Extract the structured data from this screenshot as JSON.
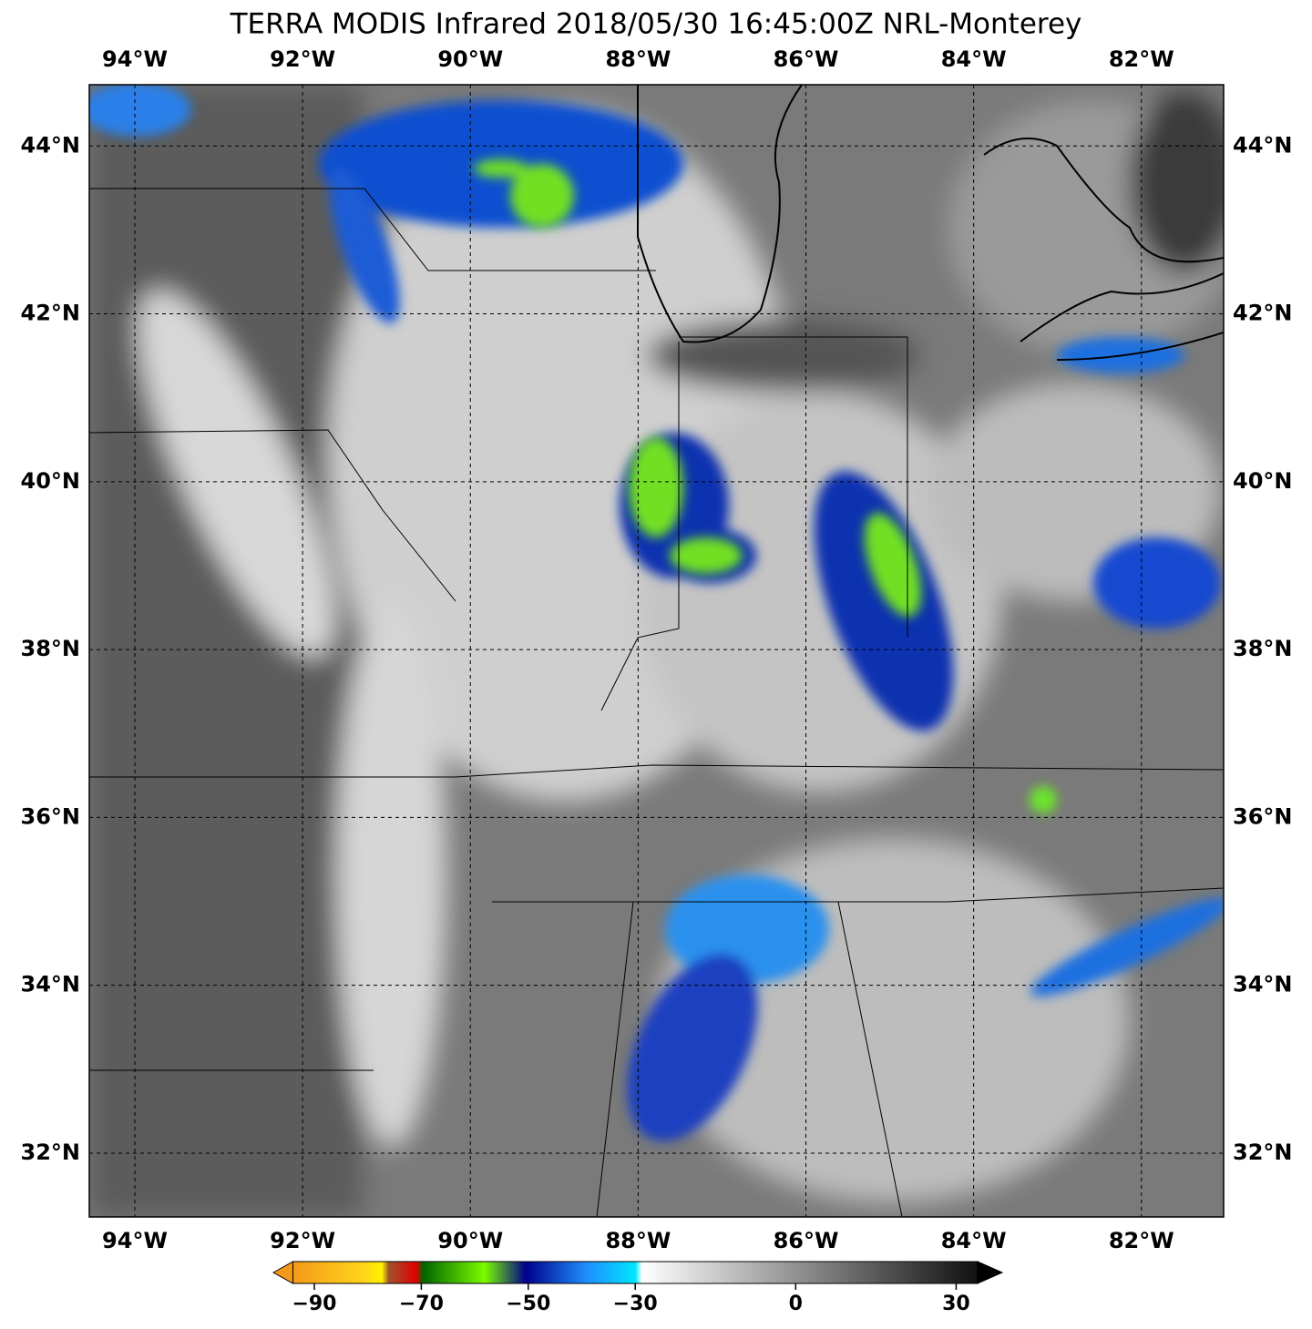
{
  "chart_data": {
    "type": "map",
    "title": "TERRA MODIS Infrared 2018/05/30 16:45:00Z NRL-Monterey",
    "xlim": [
      -94.543,
      -81.02
    ],
    "ylim": [
      31.24,
      44.73
    ],
    "xticks": [
      {
        "value": -94,
        "label": "94°W"
      },
      {
        "value": -92,
        "label": "92°W"
      },
      {
        "value": -90,
        "label": "90°W"
      },
      {
        "value": -88,
        "label": "88°W"
      },
      {
        "value": -86,
        "label": "86°W"
      },
      {
        "value": -84,
        "label": "84°W"
      },
      {
        "value": -82,
        "label": "82°W"
      }
    ],
    "yticks": [
      {
        "value": 32,
        "label": "32°N"
      },
      {
        "value": 34,
        "label": "34°N"
      },
      {
        "value": 36,
        "label": "36°N"
      },
      {
        "value": 38,
        "label": "38°N"
      },
      {
        "value": 40,
        "label": "40°N"
      },
      {
        "value": 42,
        "label": "42°N"
      },
      {
        "value": 44,
        "label": "44°N"
      }
    ],
    "grid": true,
    "colorbar": {
      "lim": [
        -94,
        34
      ],
      "ticks": [
        {
          "value": -90,
          "label": "−90"
        },
        {
          "value": -70,
          "label": "−70"
        },
        {
          "value": -50,
          "label": "−50"
        },
        {
          "value": -30,
          "label": "−30"
        },
        0,
        30
      ]
    }
  }
}
